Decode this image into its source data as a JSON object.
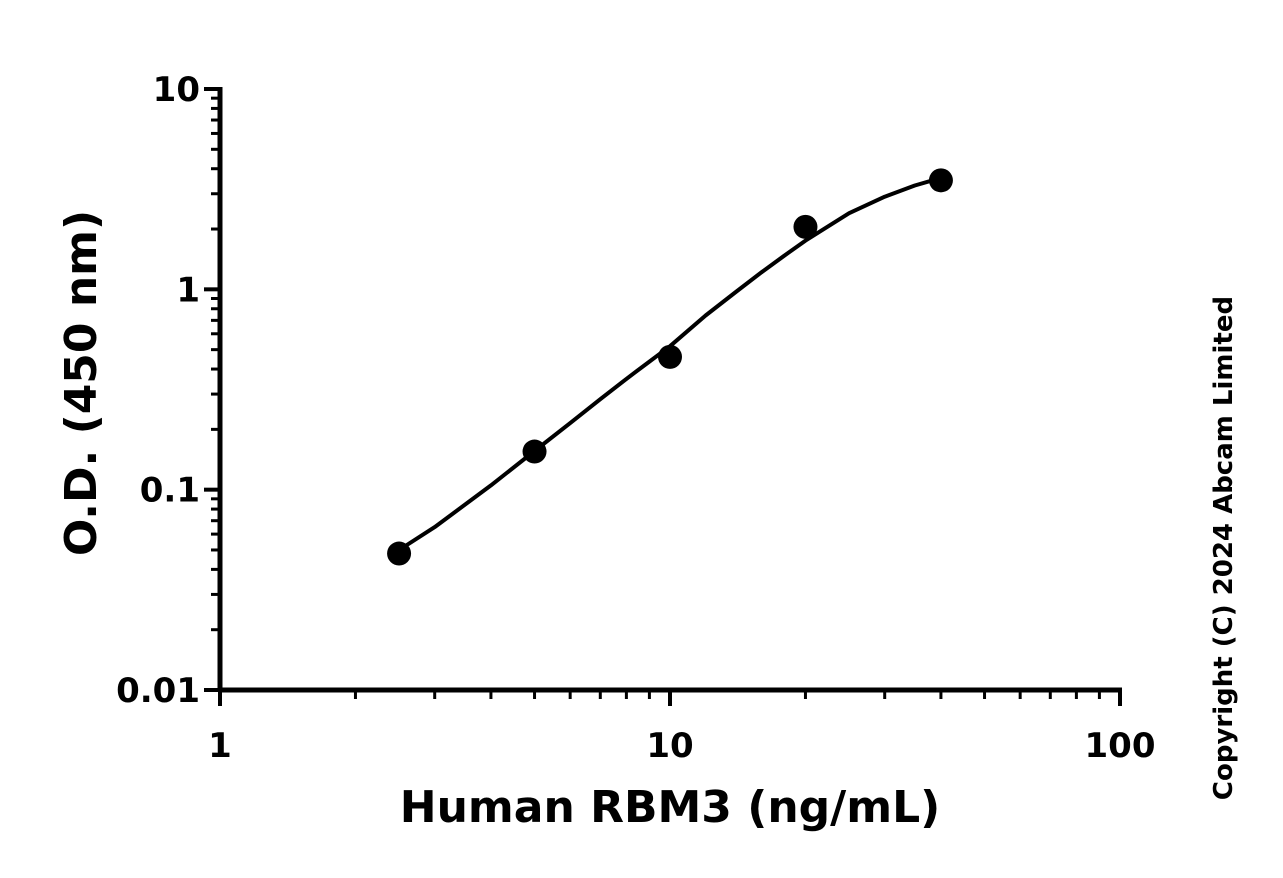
{
  "chart_data": {
    "type": "scatter",
    "title": "",
    "xlabel": "Human RBM3 (ng/mL)",
    "ylabel": "O.D. (450 nm)",
    "x_scale": "log",
    "y_scale": "log",
    "xlim": [
      1,
      100
    ],
    "ylim": [
      0.01,
      10
    ],
    "x_ticks": [
      "1",
      "10",
      "100"
    ],
    "y_ticks": [
      "0.01",
      "0.1",
      "1",
      "10"
    ],
    "grid": false,
    "legend": "none",
    "series": [
      {
        "x": [
          2.5,
          5,
          10,
          20,
          40
        ],
        "y": [
          0.048,
          0.155,
          0.46,
          2.05,
          3.5
        ],
        "marker": "circle",
        "color": "#000000"
      }
    ],
    "fit_curve": {
      "x": [
        2.5,
        3,
        4,
        5,
        6,
        7,
        8,
        9,
        10,
        12,
        14,
        16,
        18,
        20,
        25,
        30,
        35,
        40
      ],
      "y": [
        0.05,
        0.065,
        0.105,
        0.156,
        0.215,
        0.283,
        0.357,
        0.436,
        0.52,
        0.74,
        0.97,
        1.22,
        1.48,
        1.75,
        2.4,
        2.9,
        3.3,
        3.6
      ]
    },
    "watermark": "Copyright (C) 2024 Abcam Limited"
  }
}
